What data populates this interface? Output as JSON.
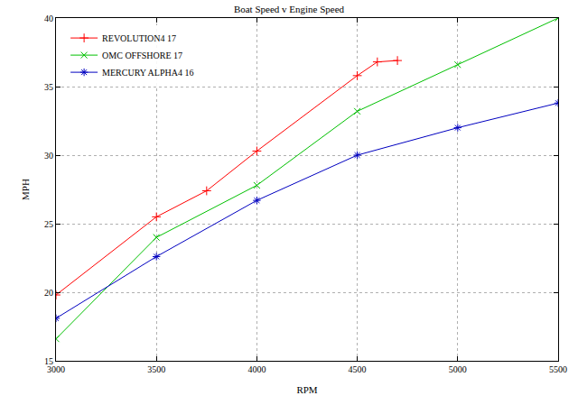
{
  "chart_data": {
    "type": "line",
    "title": "Boat Speed v Engine Speed",
    "x_label": "RPM",
    "y_label": "MPH",
    "xlim": [
      3000,
      5500
    ],
    "xticks": [
      3000,
      3500,
      4000,
      4500,
      5000,
      5500
    ],
    "ylim": [
      15,
      40
    ],
    "yticks": [
      15,
      20,
      25,
      30,
      35,
      40
    ],
    "grid": true,
    "legend": "top left",
    "series": [
      {
        "name": "REVOLUTION4 17",
        "color": "#ff0000",
        "marker": "cross",
        "line_style": "solid",
        "x": [
          3000,
          3500,
          3750,
          4000,
          4500,
          4600,
          4700
        ],
        "values": [
          19.8,
          25.5,
          27.4,
          30.3,
          35.8,
          36.8,
          36.9
        ]
      },
      {
        "name": "OMC OFFSHORE 17",
        "color": "#00c000",
        "marker": "x",
        "line_style": "solid",
        "x": [
          3000,
          3500,
          4000,
          4500,
          5000,
          5500
        ],
        "values": [
          16.6,
          24.0,
          27.8,
          33.2,
          36.6,
          40.0
        ]
      },
      {
        "name": "MERCURY ALPHA4 16",
        "color": "#0000c0",
        "marker": "asterisk",
        "line_style": "solid",
        "x": [
          3000,
          3500,
          4000,
          4500,
          5000,
          5500
        ],
        "values": [
          18.1,
          22.6,
          26.7,
          30.0,
          32.0,
          33.8
        ]
      }
    ]
  }
}
